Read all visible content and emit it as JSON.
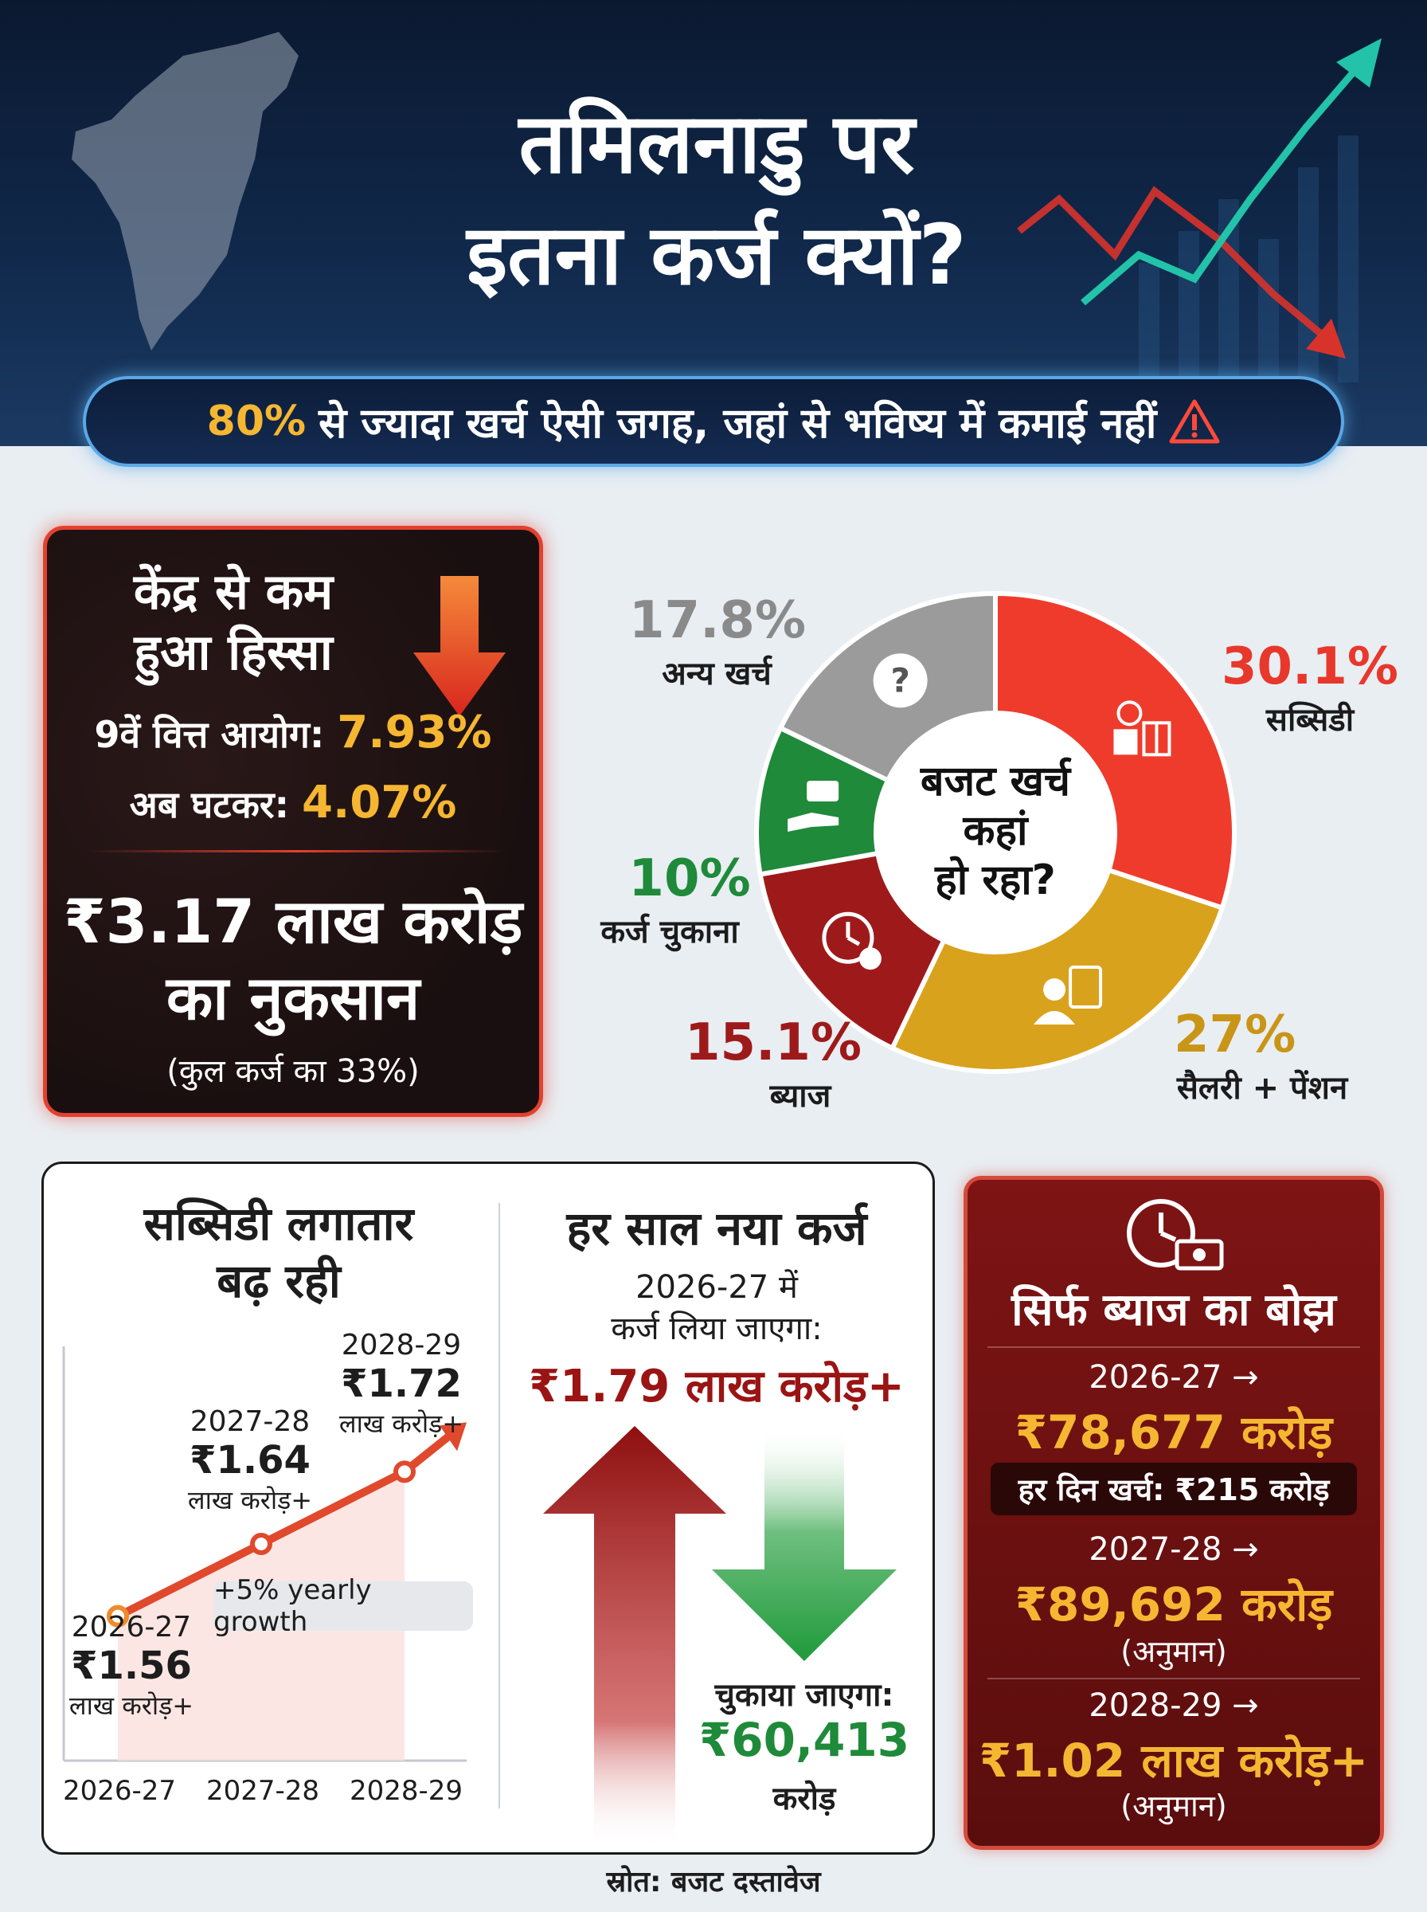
{
  "header": {
    "title_line1": "तमिलनाडु पर",
    "title_line2": "इतना कर्ज क्यों?",
    "subtitle_highlight": "80%",
    "subtitle_rest": "से ज्यादा खर्च ऐसी जगह, जहां से भविष्य में कमाई नहीं"
  },
  "central_share": {
    "title_line1": "केंद्र से कम",
    "title_line2": "हुआ हिस्सा",
    "ninth_label": "9वें वित्त आयोग:",
    "ninth_value": "7.93%",
    "now_label": "अब घटकर:",
    "now_value": "4.07%",
    "loss_line1": "₹3.17 लाख करोड़",
    "loss_line2": "का नुकसान",
    "loss_note": "(कुल कर्ज का 33%)"
  },
  "budget": {
    "center_line1": "बजट खर्च",
    "center_line2": "कहां",
    "center_line3": "हो रहा?",
    "labels": [
      {
        "pct": "30.1%",
        "name": "सब्सिडी"
      },
      {
        "pct": "27%",
        "name": "सैलरी + पेंशन"
      },
      {
        "pct": "15.1%",
        "name": "ब्याज"
      },
      {
        "pct": "10%",
        "name": "कर्ज चुकाना"
      },
      {
        "pct": "17.8%",
        "name": "अन्य खर्च"
      }
    ]
  },
  "subsidy": {
    "title_line1": "सब्सिडी लगातार",
    "title_line2": "बढ़ रही",
    "growth_badge": "+5% yearly growth",
    "points": [
      {
        "year": "2026-27",
        "value": "₹1.56",
        "unit": "लाख करोड़+"
      },
      {
        "year": "2027-28",
        "value": "₹1.64",
        "unit": "लाख करोड़+"
      },
      {
        "year": "2028-29",
        "value": "₹1.72",
        "unit": "लाख करोड़+"
      }
    ]
  },
  "new_loan": {
    "title": "हर साल नया कर्ज",
    "line1": "2026-27 में",
    "line2": "कर्ज लिया जाएगा:",
    "borrow_value": "₹1.79 लाख करोड़+",
    "repay_label": "चुकाया जाएगा:",
    "repay_value": "₹60,413",
    "repay_unit": "करोड़"
  },
  "interest": {
    "title": "सिर्फ ब्याज का बोझ",
    "rows": [
      {
        "year": "2026-27 →",
        "value": "₹78,677 करोड़",
        "note": ""
      },
      {
        "year": "2027-28 →",
        "value": "₹89,692 करोड़",
        "note": "(अनुमान)"
      },
      {
        "year": "2028-29 →",
        "value": "₹1.02 लाख करोड़+",
        "note": "(अनुमान)"
      }
    ],
    "daily": "हर दिन खर्च: ₹215 करोड़"
  },
  "source": "स्रोत: बजट दस्तावेज",
  "colors": {
    "subsidy": "#ef3b2c",
    "salary": "#d9a21c",
    "interest": "#9e1a1a",
    "repay": "#1f8a3a",
    "other": "#9b9b9b",
    "accent_yellow": "#f5b731",
    "borrow_red": "#9a1414",
    "repay_green": "#1f9a3a"
  },
  "chart_data": [
    {
      "type": "pie",
      "title": "बजट खर्च कहां हो रहा?",
      "categories": [
        "सब्सिडी",
        "सैलरी + पेंशन",
        "ब्याज",
        "कर्ज चुकाना",
        "अन्य खर्च"
      ],
      "values": [
        30.1,
        27,
        15.1,
        10,
        17.8
      ],
      "icons": [
        "money-gift-icon",
        "employee-id-icon",
        "clock-percent-icon",
        "hand-cash-icon",
        "question-bubble-icon"
      ]
    },
    {
      "type": "line",
      "title": "सब्सिडी लगातार बढ़ रही",
      "categories": [
        "2026-27",
        "2027-28",
        "2028-29"
      ],
      "series": [
        {
          "values": [
            1.56,
            1.64,
            1.72
          ]
        }
      ],
      "ylabel": "",
      "xlabel": ""
    }
  ]
}
